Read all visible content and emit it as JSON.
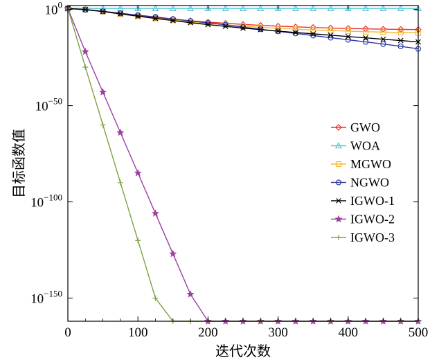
{
  "chart_data": {
    "type": "line",
    "title": "",
    "xlabel": "迭代次数",
    "ylabel": "目标函数值",
    "xlim": [
      0,
      500
    ],
    "y_scale": "log",
    "ylim_log10": [
      -162,
      2
    ],
    "x_ticks": [
      {
        "value": 0,
        "label": "0"
      },
      {
        "value": 100,
        "label": "100"
      },
      {
        "value": 200,
        "label": "200"
      },
      {
        "value": 300,
        "label": "300"
      },
      {
        "value": 400,
        "label": "400"
      },
      {
        "value": 500,
        "label": "500"
      }
    ],
    "y_ticks": [
      {
        "log10": 0,
        "base": "10",
        "exp": "0"
      },
      {
        "log10": -50,
        "base": "10",
        "exp": "−50"
      },
      {
        "log10": -100,
        "base": "10",
        "exp": "−100"
      },
      {
        "log10": -150,
        "base": "10",
        "exp": "−150"
      }
    ],
    "grid": false,
    "legend_position": "right",
    "series": [
      {
        "name": "GWO",
        "color": "#e8322a",
        "marker": "diamond",
        "x": [
          0,
          25,
          50,
          75,
          100,
          125,
          150,
          175,
          200,
          225,
          250,
          275,
          300,
          325,
          350,
          375,
          400,
          425,
          450,
          475,
          500
        ],
        "log10_y": [
          0.5,
          0,
          -1.0,
          -2.2,
          -3.3,
          -4.3,
          -5.1,
          -5.9,
          -6.6,
          -7.2,
          -7.8,
          -8.3,
          -8.7,
          -9.1,
          -9.4,
          -9.7,
          -9.9,
          -10.1,
          -10.3,
          -10.4,
          -10.5
        ]
      },
      {
        "name": "WOA",
        "color": "#5bc4d8",
        "marker": "triangle",
        "x": [
          0,
          25,
          50,
          75,
          100,
          125,
          150,
          175,
          200,
          225,
          250,
          275,
          300,
          325,
          350,
          375,
          400,
          425,
          450,
          475,
          500
        ],
        "log10_y": [
          0.6,
          0.5,
          0.5,
          0.5,
          0.5,
          0.5,
          0.5,
          0.5,
          0.5,
          0.5,
          0.5,
          0.5,
          0.5,
          0.5,
          0.5,
          0.5,
          0.5,
          0.5,
          0.5,
          0.5,
          0.5
        ]
      },
      {
        "name": "MGWO",
        "color": "#f5b935",
        "marker": "square",
        "x": [
          0,
          25,
          50,
          75,
          100,
          125,
          150,
          175,
          200,
          225,
          250,
          275,
          300,
          325,
          350,
          375,
          400,
          425,
          450,
          475,
          500
        ],
        "log10_y": [
          0.5,
          -0.1,
          -1.2,
          -2.5,
          -3.6,
          -4.7,
          -5.6,
          -6.5,
          -7.3,
          -8.0,
          -8.7,
          -9.3,
          -9.8,
          -10.3,
          -10.7,
          -11.0,
          -11.3,
          -11.6,
          -11.8,
          -12.0,
          -12.2
        ]
      },
      {
        "name": "NGWO",
        "color": "#2f3aa8",
        "marker": "circle",
        "x": [
          0,
          25,
          50,
          75,
          100,
          125,
          150,
          175,
          200,
          225,
          250,
          275,
          300,
          325,
          350,
          375,
          400,
          425,
          450,
          475,
          500
        ],
        "log10_y": [
          0.5,
          -0.2,
          -1.0,
          -2.0,
          -3.0,
          -3.9,
          -5.0,
          -6.0,
          -7.0,
          -8.0,
          -9.2,
          -10.3,
          -11.4,
          -12.5,
          -13.6,
          -14.7,
          -15.8,
          -16.9,
          -18.0,
          -19.2,
          -20.5
        ]
      },
      {
        "name": "IGWO-1",
        "color": "#000000",
        "marker": "x",
        "x": [
          0,
          25,
          50,
          75,
          100,
          125,
          150,
          175,
          200,
          225,
          250,
          275,
          300,
          325,
          350,
          375,
          400,
          425,
          450,
          475,
          500
        ],
        "log10_y": [
          0.5,
          -0.1,
          -1.1,
          -2.3,
          -3.5,
          -4.7,
          -5.8,
          -6.9,
          -7.9,
          -8.8,
          -9.7,
          -10.5,
          -11.3,
          -12.0,
          -12.7,
          -13.4,
          -14.1,
          -14.8,
          -15.5,
          -16.2,
          -16.9
        ]
      },
      {
        "name": "IGWO-2",
        "color": "#9b3fa0",
        "marker": "star",
        "x": [
          0,
          25,
          50,
          75,
          100,
          125,
          150,
          175,
          200,
          225,
          250,
          275,
          300,
          325,
          350,
          375,
          400,
          425,
          450,
          475,
          500
        ],
        "log10_y": [
          0.5,
          -22,
          -43,
          -64,
          -85,
          -106,
          -127,
          -148,
          -169,
          -162,
          -162,
          -162,
          -162,
          -162,
          -162,
          -162,
          -162,
          -162,
          -162,
          -162,
          -162
        ]
      },
      {
        "name": "IGWO-3",
        "color": "#7ba23f",
        "marker": "plus",
        "x": [
          0,
          25,
          50,
          75,
          100,
          125,
          150,
          175,
          200,
          225,
          250,
          275,
          300,
          325,
          350,
          375,
          400,
          425,
          450,
          475,
          500
        ],
        "log10_y": [
          0.5,
          -30,
          -60,
          -90,
          -120,
          -150,
          -180,
          -162,
          -162,
          -162,
          -162,
          -162,
          -162,
          -162,
          -162,
          -162,
          -162,
          -162,
          -162,
          -162,
          -162
        ]
      }
    ]
  }
}
